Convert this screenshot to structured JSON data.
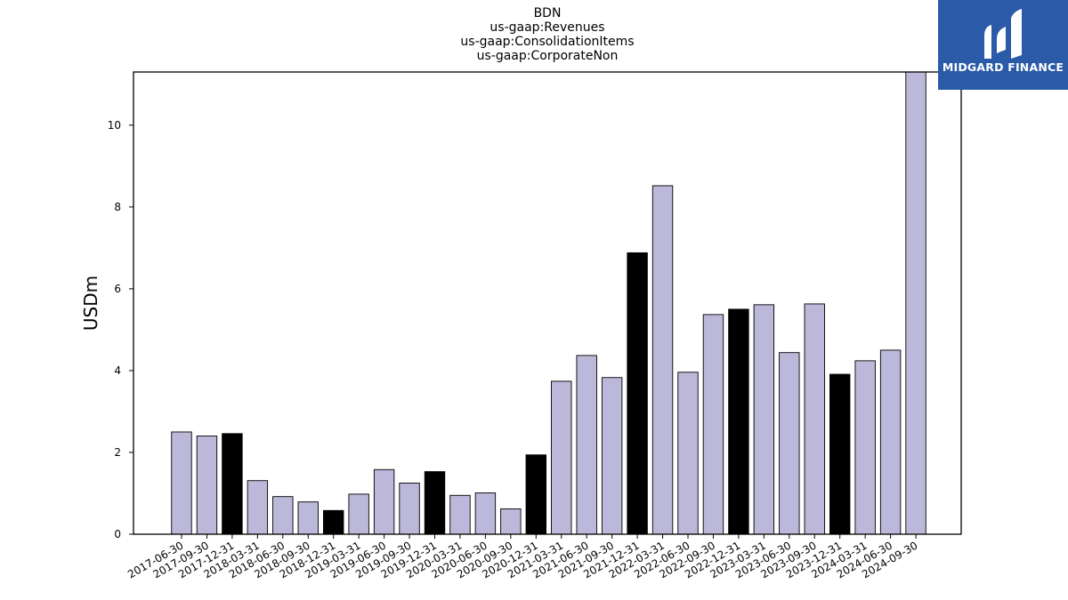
{
  "chart_data": {
    "type": "bar",
    "title": [
      "BDN",
      "us-gaap:Revenues",
      "us-gaap:ConsolidationItems",
      "us-gaap:CorporateNon"
    ],
    "xlabel": "",
    "ylabel": "USDm",
    "ylim": [
      0,
      11.3
    ],
    "yticks": [
      0,
      2,
      4,
      6,
      8,
      10
    ],
    "grid": false,
    "colors": {
      "quarter": "#bcb8d9",
      "year_end": "#000000",
      "edge": "#000000"
    },
    "categories": [
      "2017-06-30",
      "2017-09-30",
      "2017-12-31",
      "2018-03-31",
      "2018-06-30",
      "2018-09-30",
      "2018-12-31",
      "2019-03-31",
      "2019-06-30",
      "2019-09-30",
      "2019-12-31",
      "2020-03-31",
      "2020-06-30",
      "2020-09-30",
      "2020-12-31",
      "2021-03-31",
      "2021-06-30",
      "2021-09-30",
      "2021-12-31",
      "2022-03-31",
      "2022-06-30",
      "2022-09-30",
      "2022-12-31",
      "2023-03-31",
      "2023-06-30",
      "2023-09-30",
      "2023-12-31",
      "2024-03-31",
      "2024-06-30",
      "2024-09-30"
    ],
    "values": [
      2.5,
      2.4,
      2.46,
      1.31,
      0.92,
      0.79,
      0.58,
      0.98,
      1.58,
      1.25,
      1.53,
      0.95,
      1.01,
      0.62,
      1.94,
      3.74,
      4.37,
      3.83,
      6.88,
      8.52,
      3.96,
      5.37,
      5.5,
      5.61,
      4.44,
      5.63,
      3.91,
      4.24,
      4.5,
      11.3
    ],
    "highlight": [
      false,
      false,
      true,
      false,
      false,
      false,
      true,
      false,
      false,
      false,
      true,
      false,
      false,
      false,
      true,
      false,
      false,
      false,
      true,
      false,
      false,
      false,
      true,
      false,
      false,
      false,
      true,
      false,
      false,
      false
    ]
  },
  "logo": {
    "text": "MIDGARD FINANCE",
    "color": "#2b5aa8"
  }
}
